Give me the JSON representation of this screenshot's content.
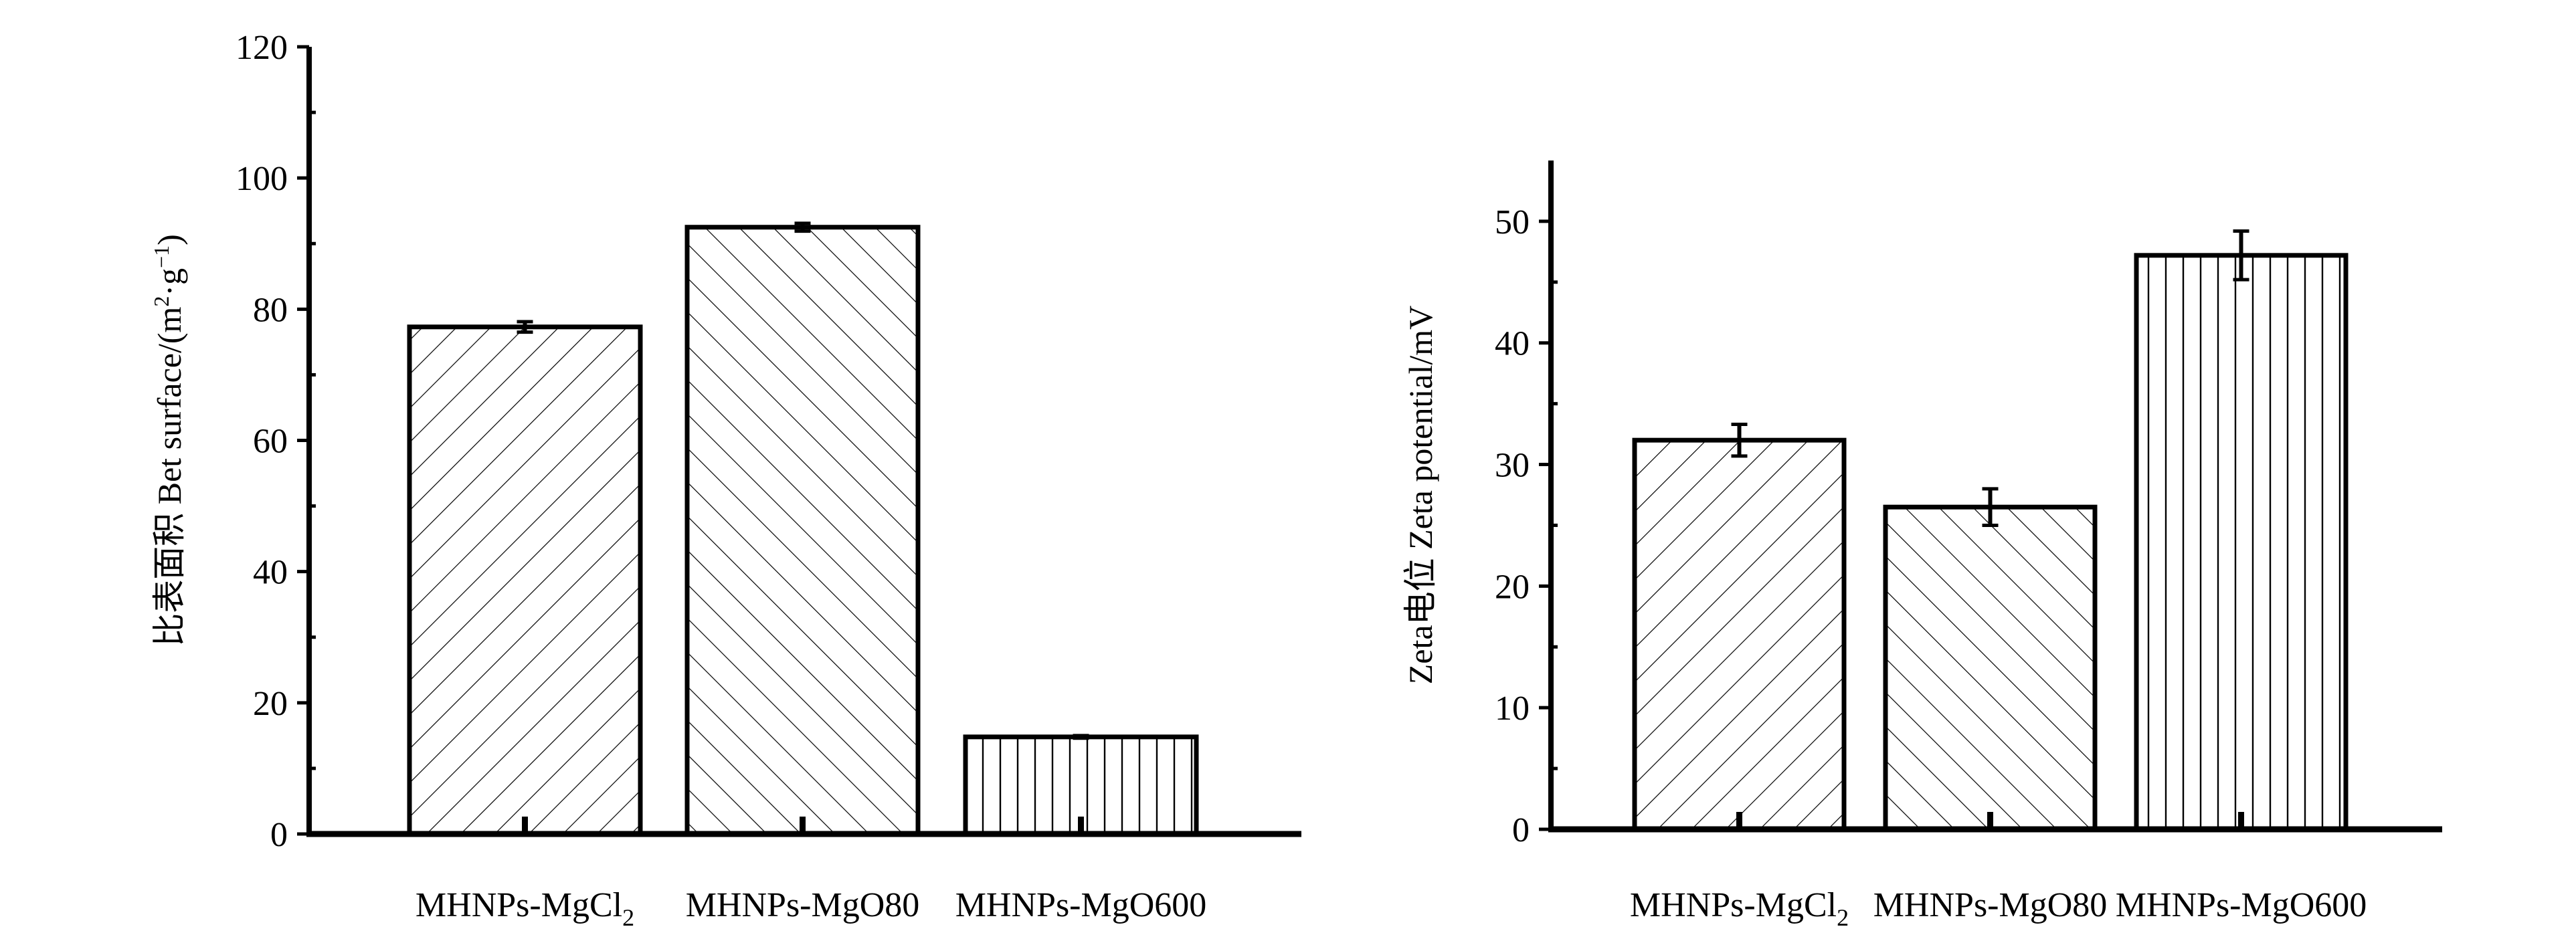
{
  "chart_data": [
    {
      "type": "bar",
      "categories": [
        "MHNPs-MgCl2",
        "MHNPs-MgO80",
        "MHNPs-MgO600"
      ],
      "category_label_parts": [
        {
          "main": "MHNPs-MgCl",
          "sub": "2"
        },
        {
          "main": "MHNPs-MgO80",
          "sub": ""
        },
        {
          "main": "MHNPs-MgO600",
          "sub": ""
        }
      ],
      "values": [
        77.3,
        92.5,
        14.8
      ],
      "errors": [
        0.8,
        0.6,
        0.2
      ],
      "patterns": [
        "diag-back",
        "diag-fwd",
        "vertical"
      ],
      "ylabel": {
        "prefix": "比表面积 Bet surface/(m",
        "sup1": "2",
        "mid": "·g",
        "sup2": "−1",
        "suffix": ")"
      },
      "ylim": [
        0,
        120
      ],
      "yticks": [
        0,
        20,
        40,
        60,
        80,
        100,
        120
      ],
      "grid": false
    },
    {
      "type": "bar",
      "categories": [
        "MHNPs-MgCl2",
        "MHNPs-MgO80",
        "MHNPs-MgO600"
      ],
      "category_label_parts": [
        {
          "main": "MHNPs-MgCl",
          "sub": "2"
        },
        {
          "main": "MHNPs-MgO80",
          "sub": ""
        },
        {
          "main": "MHNPs-MgO600",
          "sub": ""
        }
      ],
      "values": [
        32.0,
        26.5,
        47.2
      ],
      "errors": [
        1.3,
        1.5,
        2.0
      ],
      "patterns": [
        "diag-back",
        "diag-fwd",
        "vertical"
      ],
      "ylabel": {
        "text": "Zeta电位 Zeta potential/mV"
      },
      "ylim": [
        0,
        55
      ],
      "yticks": [
        0,
        10,
        20,
        30,
        40,
        50
      ],
      "grid": false
    }
  ]
}
